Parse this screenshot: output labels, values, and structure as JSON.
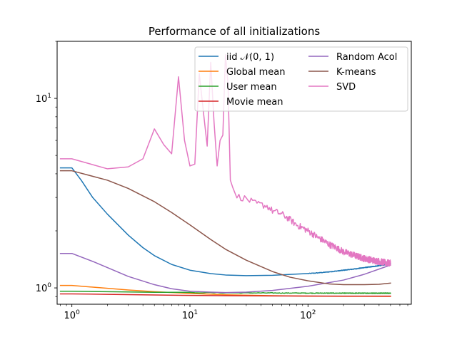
{
  "chart_data": {
    "type": "line",
    "title": "Performance of all initializations",
    "xlabel": "",
    "ylabel": "",
    "xscale": "log",
    "yscale": "log",
    "xlim": [
      0.75,
      750
    ],
    "ylim": [
      0.82,
      20
    ],
    "grid": false,
    "legend_placement": "top-right",
    "legend_columns": 2,
    "xticks": [
      {
        "value": 1,
        "base": "10",
        "exp": "0"
      },
      {
        "value": 10,
        "base": "10",
        "exp": "1"
      },
      {
        "value": 100,
        "base": "10",
        "exp": "2"
      }
    ],
    "yticks": [
      {
        "value": 1,
        "base": "10",
        "exp": "0"
      },
      {
        "value": 10,
        "base": "10",
        "exp": "1"
      }
    ],
    "series": [
      {
        "name": "iid 𝒩(0, 1)",
        "color": "#1f77b4",
        "x": [
          0.8,
          1,
          1.2,
          1.5,
          2,
          3,
          4,
          5,
          7,
          10,
          15,
          20,
          30,
          50,
          100,
          200,
          300,
          400,
          500
        ],
        "y": [
          4.3,
          4.3,
          3.7,
          3.0,
          2.45,
          1.9,
          1.63,
          1.48,
          1.33,
          1.24,
          1.19,
          1.17,
          1.16,
          1.165,
          1.19,
          1.24,
          1.28,
          1.31,
          1.34
        ]
      },
      {
        "name": "Global mean",
        "color": "#ff7f0e",
        "x": [
          0.8,
          1,
          2,
          3,
          5,
          10,
          20,
          50,
          100,
          200,
          500
        ],
        "y": [
          1.03,
          1.03,
          0.995,
          0.975,
          0.955,
          0.935,
          0.92,
          0.91,
          0.905,
          0.903,
          0.902
        ]
      },
      {
        "name": "User mean",
        "color": "#2ca02c",
        "x": [
          0.8,
          1,
          2,
          3,
          5,
          10,
          20,
          50,
          100,
          200,
          500
        ],
        "y": [
          0.96,
          0.96,
          0.955,
          0.952,
          0.948,
          0.945,
          0.942,
          0.94,
          0.939,
          0.938,
          0.938
        ]
      },
      {
        "name": "Movie mean",
        "color": "#d62728",
        "x": [
          0.8,
          1,
          2,
          5,
          10,
          20,
          50,
          100,
          200,
          500
        ],
        "y": [
          0.93,
          0.93,
          0.925,
          0.918,
          0.913,
          0.91,
          0.907,
          0.906,
          0.905,
          0.905
        ]
      },
      {
        "name": "Random Acol",
        "color": "#9467bd",
        "x": [
          0.8,
          1,
          1.5,
          2,
          3,
          5,
          7,
          10,
          15,
          20,
          30,
          50,
          100,
          200,
          300,
          500
        ],
        "y": [
          1.52,
          1.52,
          1.38,
          1.28,
          1.15,
          1.04,
          0.99,
          0.96,
          0.95,
          0.945,
          0.95,
          0.97,
          1.02,
          1.1,
          1.18,
          1.32
        ]
      },
      {
        "name": "K-means",
        "color": "#8c564b",
        "x": [
          0.8,
          1,
          2,
          3,
          5,
          7,
          10,
          15,
          20,
          30,
          50,
          70,
          100,
          150,
          200,
          300,
          400,
          500
        ],
        "y": [
          4.15,
          4.15,
          3.7,
          3.35,
          2.85,
          2.5,
          2.15,
          1.8,
          1.6,
          1.4,
          1.22,
          1.14,
          1.09,
          1.05,
          1.04,
          1.04,
          1.045,
          1.06
        ]
      },
      {
        "name": "SVD",
        "color": "#e377c2",
        "x": [
          0.8,
          1,
          2,
          3,
          4,
          5,
          6,
          7,
          8,
          9,
          10,
          11,
          12,
          13,
          14,
          15,
          16,
          17,
          18,
          19,
          20,
          21,
          22,
          23,
          25,
          30,
          35,
          40,
          45,
          50,
          60,
          70,
          80,
          100,
          120,
          150,
          200,
          250,
          300,
          350,
          400,
          450,
          500
        ],
        "y": [
          4.8,
          4.8,
          4.25,
          4.35,
          4.8,
          6.9,
          5.7,
          5.1,
          13.0,
          6.0,
          4.4,
          4.5,
          13.5,
          8.5,
          5.6,
          15.5,
          7.5,
          4.4,
          6.0,
          6.4,
          17.0,
          12.0,
          3.7,
          3.4,
          3.05,
          2.95,
          2.8,
          2.75,
          2.7,
          2.55,
          2.45,
          2.3,
          2.15,
          2.0,
          1.85,
          1.7,
          1.55,
          1.48,
          1.43,
          1.4,
          1.38,
          1.36,
          1.35
        ]
      }
    ]
  }
}
